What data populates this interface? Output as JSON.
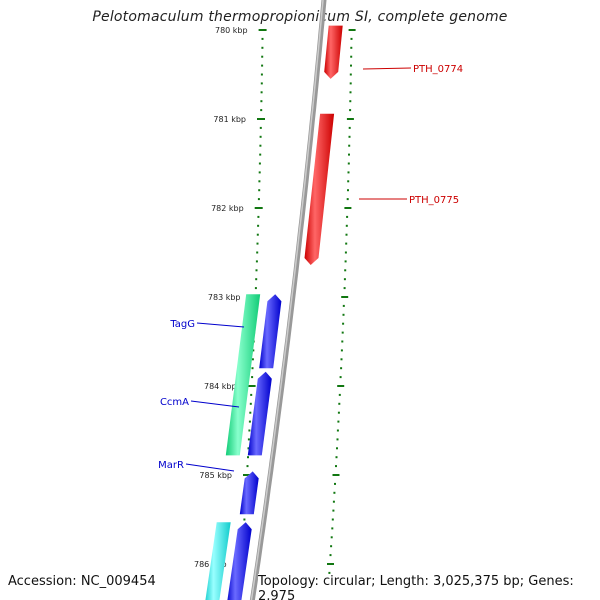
{
  "title": "Pelotomaculum thermopropionicum SI, complete genome",
  "accession_label": "Accession: NC_009454",
  "topology_label": "Topology: circular; Length: 3,025,375 bp; Genes: 2,975",
  "colors": {
    "forward_gene": "#ee0000",
    "reverse_gene": "#0000ee",
    "rna_green": "#22ee99",
    "rna_cyan": "#22eeee",
    "tick": "#117711",
    "backbone": "#888888",
    "label_red": "#cc0000",
    "label_blue": "#0000cc"
  },
  "scale": {
    "unit": "kbp",
    "ticks": [
      {
        "kbp": 780,
        "label": "780 kbp"
      },
      {
        "kbp": 781,
        "label": "781 kbp"
      },
      {
        "kbp": 782,
        "label": "782 kbp"
      },
      {
        "kbp": 783,
        "label": "783 kbp"
      },
      {
        "kbp": 784,
        "label": "784 kbp"
      },
      {
        "kbp": 785,
        "label": "785 kbp"
      },
      {
        "kbp": 786,
        "label": "786 kbp"
      }
    ]
  },
  "features": [
    {
      "name": "PTH_0774",
      "strand": "+",
      "type": "gene",
      "start_kbp": 779.95,
      "end_kbp": 780.55,
      "labeled": true
    },
    {
      "name": "PTH_0775",
      "strand": "+",
      "type": "gene",
      "start_kbp": 780.94,
      "end_kbp": 782.64,
      "labeled": true
    },
    {
      "name": "TagG",
      "strand": "-",
      "type": "gene",
      "start_kbp": 782.97,
      "end_kbp": 783.8,
      "labeled": true
    },
    {
      "name": "CcmA",
      "strand": "-",
      "type": "gene",
      "start_kbp": 783.84,
      "end_kbp": 784.78,
      "labeled": true
    },
    {
      "name": "MarR",
      "strand": "-",
      "type": "gene",
      "start_kbp": 784.96,
      "end_kbp": 785.44,
      "labeled": true
    },
    {
      "name": "",
      "strand": "-",
      "type": "gene",
      "start_kbp": 785.53,
      "end_kbp": 786.5,
      "labeled": false
    },
    {
      "name": "",
      "strand": "-",
      "type": "rna_green",
      "start_kbp": 782.97,
      "end_kbp": 784.78,
      "labeled": false
    },
    {
      "name": "",
      "strand": "-",
      "type": "rna_cyan",
      "start_kbp": 785.53,
      "end_kbp": 786.5,
      "labeled": false
    }
  ]
}
